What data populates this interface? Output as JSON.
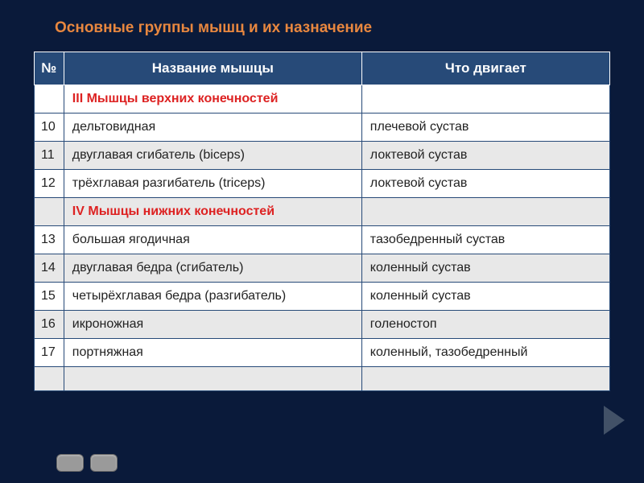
{
  "title": "Основные группы мышц и их назначение",
  "table": {
    "columns": [
      "№",
      "Название мышцы",
      "Что двигает"
    ],
    "column_widths": [
      "36px",
      "370px",
      "auto"
    ],
    "header_bg": "#274a78",
    "header_color": "#ffffff",
    "border_color": "#274a78",
    "alt_row_bg": "#e8e8e8",
    "section_color": "#d22222",
    "rows": [
      {
        "type": "section",
        "alt": false,
        "num": "",
        "name": "III Мышцы верхних конечностей",
        "moves": ""
      },
      {
        "type": "data",
        "alt": false,
        "num": "10",
        "name": "дельтовидная",
        "moves": "плечевой сустав"
      },
      {
        "type": "data",
        "alt": true,
        "num": "11",
        "name": "двуглавая сгибатель (biceps)",
        "moves": "локтевой сустав"
      },
      {
        "type": "data",
        "alt": false,
        "num": "12",
        "name": "трёхглавая разгибатель (triceps)",
        "moves": "локтевой сустав"
      },
      {
        "type": "section",
        "alt": true,
        "num": "",
        "name": "IV Мышцы нижних конечностей",
        "moves": ""
      },
      {
        "type": "data",
        "alt": false,
        "num": "13",
        "name": "большая ягодичная",
        "moves": "тазобедренный сустав"
      },
      {
        "type": "data",
        "alt": true,
        "num": "14",
        "name": "двуглавая бедра (сгибатель)",
        "moves": "коленный сустав"
      },
      {
        "type": "data",
        "alt": false,
        "num": "15",
        "name": "четырёхглавая бедра (разгибатель)",
        "moves": "коленный сустав"
      },
      {
        "type": "data",
        "alt": true,
        "num": "16",
        "name": "икроножная",
        "moves": "голеностоп"
      },
      {
        "type": "data",
        "alt": false,
        "num": "17",
        "name": "портняжная",
        "moves": "коленный, тазобедренный"
      },
      {
        "type": "blank",
        "alt": true,
        "num": "",
        "name": "",
        "moves": ""
      }
    ]
  },
  "colors": {
    "page_bg": "#0a1a3a",
    "title_color": "#e8873f",
    "pill_bg": "#9a9a9a",
    "arrow_color": "#5a6a7a"
  }
}
